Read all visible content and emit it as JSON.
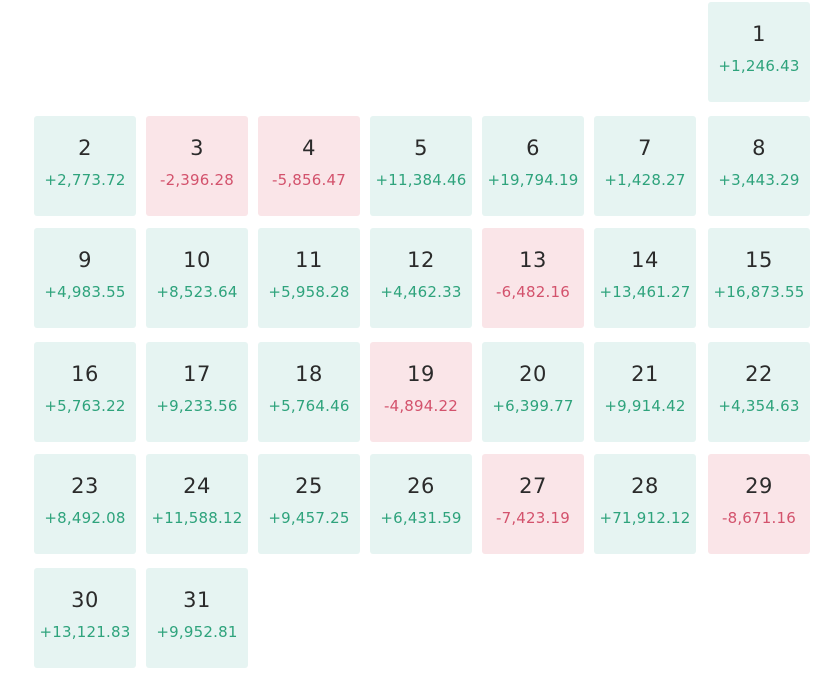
{
  "calendar": {
    "start_weekday": 6,
    "colors": {
      "gain_bg": "#e6f4f2",
      "gain_text": "#2ea37c",
      "loss_bg": "#fae5e8",
      "loss_text": "#d3526c"
    },
    "days": [
      {
        "day": "1",
        "pnl": "+1,246.43",
        "status": "gain"
      },
      {
        "day": "2",
        "pnl": "+2,773.72",
        "status": "gain"
      },
      {
        "day": "3",
        "pnl": "-2,396.28",
        "status": "loss"
      },
      {
        "day": "4",
        "pnl": "-5,856.47",
        "status": "loss"
      },
      {
        "day": "5",
        "pnl": "+11,384.46",
        "status": "gain"
      },
      {
        "day": "6",
        "pnl": "+19,794.19",
        "status": "gain"
      },
      {
        "day": "7",
        "pnl": "+1,428.27",
        "status": "gain"
      },
      {
        "day": "8",
        "pnl": "+3,443.29",
        "status": "gain"
      },
      {
        "day": "9",
        "pnl": "+4,983.55",
        "status": "gain"
      },
      {
        "day": "10",
        "pnl": "+8,523.64",
        "status": "gain"
      },
      {
        "day": "11",
        "pnl": "+5,958.28",
        "status": "gain"
      },
      {
        "day": "12",
        "pnl": "+4,462.33",
        "status": "gain"
      },
      {
        "day": "13",
        "pnl": "-6,482.16",
        "status": "loss"
      },
      {
        "day": "14",
        "pnl": "+13,461.27",
        "status": "gain"
      },
      {
        "day": "15",
        "pnl": "+16,873.55",
        "status": "gain"
      },
      {
        "day": "16",
        "pnl": "+5,763.22",
        "status": "gain"
      },
      {
        "day": "17",
        "pnl": "+9,233.56",
        "status": "gain"
      },
      {
        "day": "18",
        "pnl": "+5,764.46",
        "status": "gain"
      },
      {
        "day": "19",
        "pnl": "-4,894.22",
        "status": "loss"
      },
      {
        "day": "20",
        "pnl": "+6,399.77",
        "status": "gain"
      },
      {
        "day": "21",
        "pnl": "+9,914.42",
        "status": "gain"
      },
      {
        "day": "22",
        "pnl": "+4,354.63",
        "status": "gain"
      },
      {
        "day": "23",
        "pnl": "+8,492.08",
        "status": "gain"
      },
      {
        "day": "24",
        "pnl": "+11,588.12",
        "status": "gain"
      },
      {
        "day": "25",
        "pnl": "+9,457.25",
        "status": "gain"
      },
      {
        "day": "26",
        "pnl": "+6,431.59",
        "status": "gain"
      },
      {
        "day": "27",
        "pnl": "-7,423.19",
        "status": "loss"
      },
      {
        "day": "28",
        "pnl": "+71,912.12",
        "status": "gain"
      },
      {
        "day": "29",
        "pnl": "-8,671.16",
        "status": "loss"
      },
      {
        "day": "30",
        "pnl": "+13,121.83",
        "status": "gain"
      },
      {
        "day": "31",
        "pnl": "+9,952.81",
        "status": "gain"
      }
    ]
  }
}
